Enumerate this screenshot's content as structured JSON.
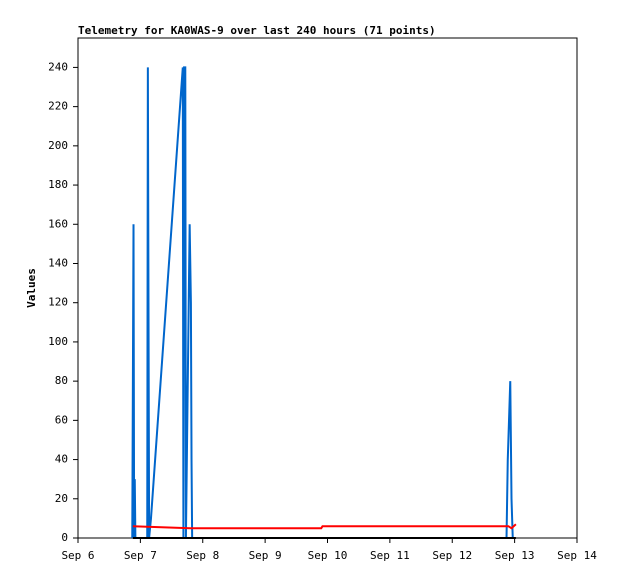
{
  "chart_data": {
    "type": "line",
    "title": "Telemetry for KA0WAS-9 over last 240 hours (71 points)",
    "y_label": "Values",
    "xlim": [
      6,
      14
    ],
    "xticks": [
      {
        "value": 6,
        "label": "Sep 6"
      },
      {
        "value": 7,
        "label": "Sep 7"
      },
      {
        "value": 8,
        "label": "Sep 8"
      },
      {
        "value": 9,
        "label": "Sep 9"
      },
      {
        "value": 10,
        "label": "Sep 10"
      },
      {
        "value": 11,
        "label": "Sep 11"
      },
      {
        "value": 12,
        "label": "Sep 12"
      },
      {
        "value": 13,
        "label": "Sep 13"
      },
      {
        "value": 14,
        "label": "Sep 14"
      }
    ],
    "ylim": [
      0,
      255
    ],
    "yticks": [
      0,
      20,
      40,
      60,
      80,
      100,
      120,
      140,
      160,
      180,
      200,
      220,
      240
    ],
    "series": [
      {
        "color": "#0066cc",
        "x": [
          6.87,
          6.88,
          6.89,
          6.9,
          6.91,
          6.92,
          7.11,
          7.12,
          7.13,
          7.14,
          7.17,
          7.68,
          7.69,
          7.7,
          7.72,
          7.73,
          7.76,
          7.79,
          7.81,
          7.82,
          7.83,
          12.87,
          12.89,
          12.91,
          12.93,
          12.95,
          12.97
        ],
        "values": [
          0,
          80,
          160,
          0,
          30,
          0,
          0,
          240,
          120,
          0,
          10,
          240,
          0,
          240,
          240,
          0,
          80,
          160,
          120,
          40,
          0,
          0,
          40,
          60,
          80,
          20,
          0
        ]
      },
      {
        "color": "#ff0000",
        "x": [
          6.88,
          7.8,
          9.9,
          9.92,
          12.9,
          12.95,
          13.02
        ],
        "values": [
          6,
          5,
          5,
          6,
          6,
          5,
          7
        ]
      },
      {
        "color": "#000000",
        "x": [
          6.88,
          13.02
        ],
        "values": [
          0,
          0
        ]
      }
    ]
  }
}
